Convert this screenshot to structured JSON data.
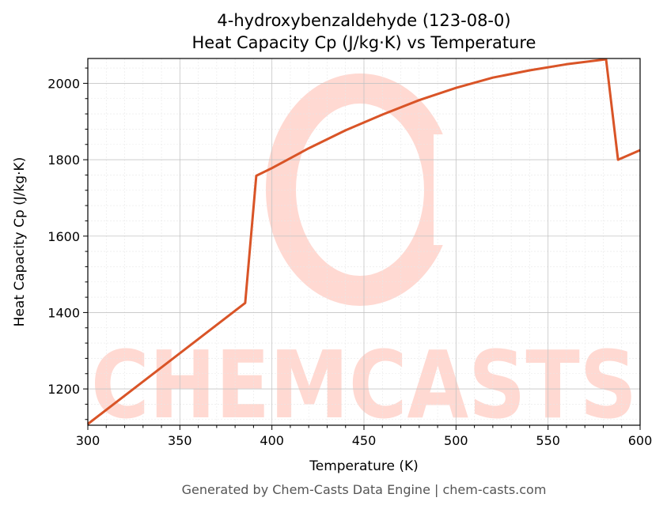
{
  "chart_data": {
    "type": "line",
    "title": "4-hydroxybenzaldehyde (123-08-0)",
    "subtitle": "Heat Capacity Cp (J/kg·K) vs Temperature",
    "xlabel": "Temperature (K)",
    "ylabel": "Heat Capacity Cp (J/kg·K)",
    "xlim": [
      300,
      600
    ],
    "ylim": [
      1105,
      2065
    ],
    "xticks": [
      300,
      350,
      400,
      450,
      500,
      550,
      600
    ],
    "yticks": [
      1200,
      1400,
      1600,
      1800,
      2000
    ],
    "grid": true,
    "line_color": "#d95427",
    "series": [
      {
        "x": [
          300,
          385.5,
          391.5,
          400,
          420,
          440,
          460,
          480,
          500,
          520,
          540,
          560,
          581.5,
          588,
          600
        ],
        "y": [
          1108,
          1425,
          1758,
          1778,
          1830,
          1877,
          1918,
          1956,
          1988,
          2015,
          2034,
          2050,
          2063,
          1800,
          1825
        ]
      }
    ],
    "watermark": {
      "text": "CHEMCASTS",
      "color": "#ffd9d2"
    },
    "footer": "Generated by Chem-Casts Data Engine | chem-casts.com"
  }
}
